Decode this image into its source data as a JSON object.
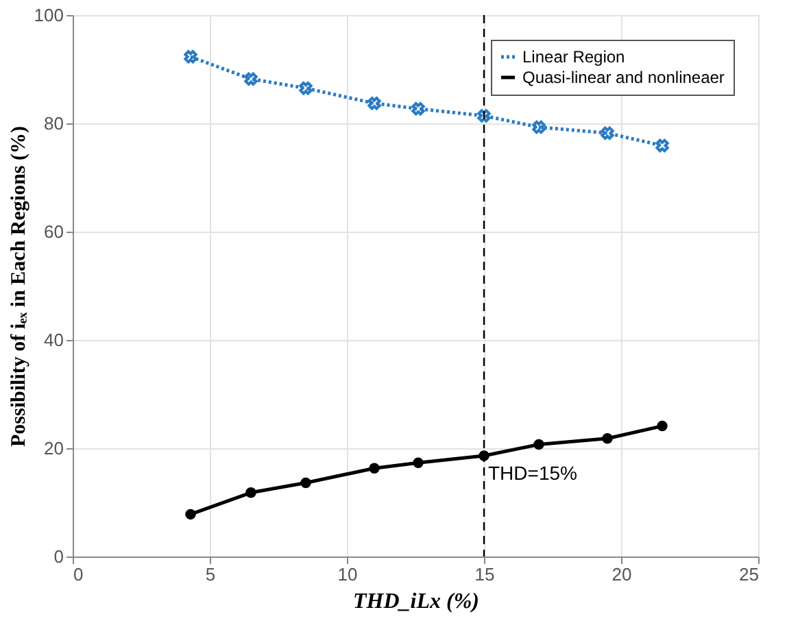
{
  "chart_data": {
    "type": "line",
    "xlabel": "THD_iLx (%)",
    "ylabel": "Possibility of iₑₓ in Each Regions (%)",
    "xlim": [
      0,
      25
    ],
    "xticks": [
      0,
      5,
      10,
      15,
      20,
      25
    ],
    "ylim": [
      0,
      100
    ],
    "yticks": [
      0,
      20,
      40,
      60,
      80,
      100
    ],
    "grid": true,
    "legend": "top right",
    "x": [
      4.3,
      6.5,
      8.5,
      11,
      12.6,
      15,
      17,
      19.5,
      21.5
    ],
    "series": [
      {
        "name": "Linear Region",
        "color": "#2a7bc4",
        "marker": "cross",
        "line_style": "dotted",
        "values": [
          92.3,
          88.2,
          86.5,
          83.7,
          82.7,
          81.4,
          79.3,
          78.2,
          75.9
        ]
      },
      {
        "name": "Quasi-linear and nonlineaer",
        "color": "#000000",
        "marker": "circle",
        "line_style": "solid",
        "values": [
          7.8,
          11.8,
          13.6,
          16.3,
          17.3,
          18.6,
          20.7,
          21.8,
          24.1
        ]
      }
    ],
    "ref_lines": [
      {
        "axis": "x",
        "value": 15,
        "label": "THD=15%",
        "color": "#000000",
        "line_style": "dashed"
      }
    ]
  }
}
